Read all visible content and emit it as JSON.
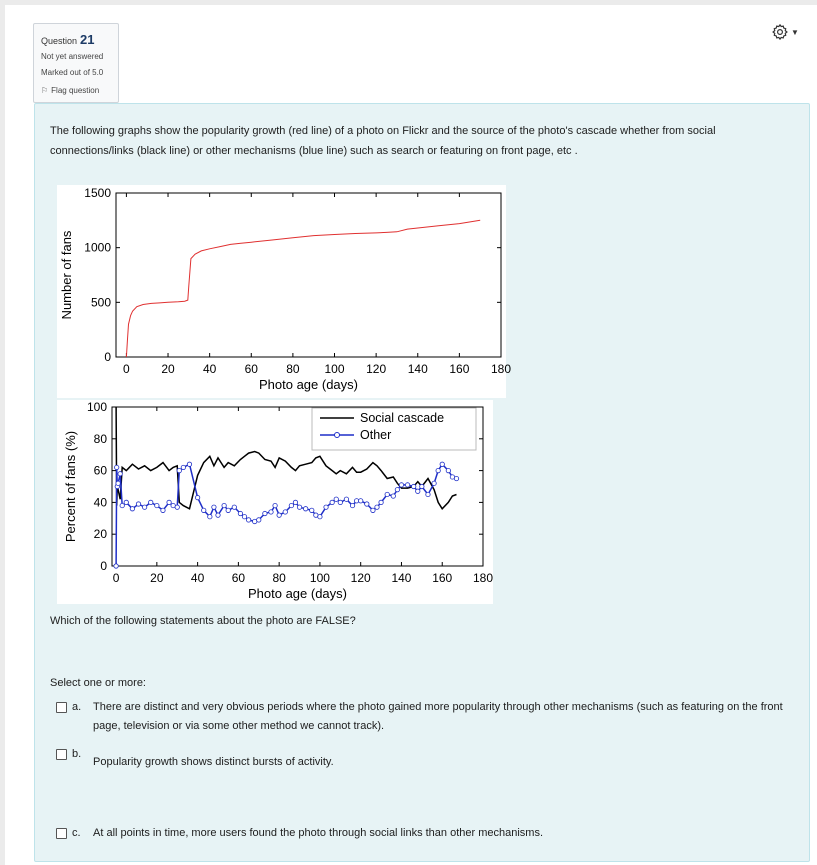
{
  "question_info": {
    "question_label": "Question",
    "question_number": "21",
    "status": "Not yet answered",
    "marks": "Marked out of 5.0",
    "flag_label": "Flag question"
  },
  "question_text": "The following graphs show the popularity growth (red line) of a photo on Flickr and the source of the photo's cascade whether from social connections/links (black line) or other mechanisms  (blue line) such as search or featuring on front page, etc .",
  "chart_data": [
    {
      "type": "line",
      "title": "",
      "xlabel": "Photo age (days)",
      "ylabel": "Number of fans",
      "xlim": [
        -5,
        180
      ],
      "ylim": [
        0,
        1500
      ],
      "xticks": [
        "0",
        "20",
        "40",
        "60",
        "80",
        "100",
        "120",
        "140",
        "160",
        "180"
      ],
      "yticks": [
        "0",
        "500",
        "1000",
        "1500"
      ],
      "series": [
        {
          "color": "#e03030",
          "x": [
            0,
            0.5,
            1,
            2,
            3,
            5,
            8,
            12,
            16,
            20,
            25,
            28,
            29.5,
            30,
            31,
            33,
            36,
            40,
            45,
            50,
            55,
            60,
            70,
            80,
            90,
            100,
            110,
            120,
            125,
            130,
            135,
            140,
            150,
            160,
            170
          ],
          "y": [
            0,
            150,
            300,
            380,
            420,
            460,
            480,
            490,
            495,
            500,
            505,
            510,
            520,
            650,
            900,
            940,
            970,
            990,
            1010,
            1030,
            1040,
            1050,
            1070,
            1090,
            1110,
            1120,
            1130,
            1135,
            1140,
            1145,
            1170,
            1180,
            1200,
            1220,
            1250
          ]
        }
      ]
    },
    {
      "type": "line",
      "title": "",
      "xlabel": "Photo age (days)",
      "ylabel": "Percent of fans (%)",
      "xlim": [
        -2,
        180
      ],
      "ylim": [
        0,
        100
      ],
      "xticks": [
        "0",
        "20",
        "40",
        "60",
        "80",
        "100",
        "120",
        "140",
        "160",
        "180"
      ],
      "yticks": [
        "0",
        "20",
        "40",
        "60",
        "80",
        "100"
      ],
      "legend": "top-right",
      "series": [
        {
          "name": "Social cascade",
          "color": "#000000",
          "x": [
            0,
            0.3,
            0.6,
            1,
            2,
            3,
            5,
            8,
            11,
            14,
            17,
            20,
            23,
            26,
            28,
            30,
            31,
            33,
            36,
            40,
            43,
            46,
            48,
            50,
            53,
            55,
            58,
            61,
            63,
            65,
            68,
            70,
            73,
            76,
            78,
            80,
            83,
            86,
            88,
            90,
            93,
            96,
            98,
            100,
            103,
            106,
            108,
            110,
            113,
            116,
            118,
            120,
            123,
            126,
            128,
            130,
            133,
            136,
            138,
            140,
            143,
            146,
            148,
            150,
            153,
            156,
            158,
            160,
            163,
            165,
            167
          ],
          "y": [
            100,
            38,
            50,
            48,
            42,
            62,
            60,
            64,
            61,
            63,
            60,
            62,
            65,
            60,
            62,
            63,
            40,
            38,
            36,
            57,
            65,
            69,
            63,
            68,
            62,
            65,
            63,
            67,
            69,
            71,
            72,
            71,
            67,
            66,
            62,
            68,
            66,
            62,
            60,
            63,
            64,
            65,
            68,
            69,
            63,
            60,
            58,
            60,
            58,
            62,
            59,
            59,
            61,
            65,
            63,
            60,
            55,
            56,
            52,
            49,
            49,
            50,
            53,
            50,
            55,
            48,
            40,
            36,
            40,
            44,
            45
          ]
        },
        {
          "name": "Other",
          "color": "#1f2fc8",
          "x": [
            0,
            0.3,
            0.6,
            1,
            2,
            3,
            5,
            8,
            11,
            14,
            17,
            20,
            23,
            26,
            28,
            30,
            31,
            33,
            36,
            40,
            43,
            46,
            48,
            50,
            53,
            55,
            58,
            61,
            63,
            65,
            68,
            70,
            73,
            76,
            78,
            80,
            83,
            86,
            88,
            90,
            93,
            96,
            98,
            100,
            103,
            106,
            108,
            110,
            113,
            116,
            118,
            120,
            123,
            126,
            128,
            130,
            133,
            136,
            138,
            140,
            143,
            146,
            148,
            150,
            153,
            156,
            158,
            160,
            163,
            165,
            167
          ],
          "y": [
            0,
            62,
            50,
            52,
            58,
            38,
            40,
            36,
            39,
            37,
            40,
            38,
            35,
            40,
            38,
            37,
            60,
            62,
            64,
            43,
            35,
            31,
            37,
            32,
            38,
            35,
            37,
            33,
            31,
            29,
            28,
            29,
            33,
            34,
            38,
            32,
            34,
            38,
            40,
            37,
            36,
            35,
            32,
            31,
            37,
            40,
            42,
            40,
            42,
            38,
            41,
            41,
            39,
            35,
            37,
            40,
            45,
            44,
            48,
            51,
            51,
            50,
            47,
            50,
            45,
            52,
            60,
            64,
            60,
            56,
            55
          ]
        }
      ]
    }
  ],
  "prompt": "Which of the following statements about the photo are FALSE?",
  "select_label": "Select one or more:",
  "options": [
    {
      "letter": "a.",
      "text": "There are distinct and very obvious periods where the photo gained more popularity through other mechanisms (such as featuring on the front page, television or via some other method we cannot track)."
    },
    {
      "letter": "b.",
      "text": "Popularity growth shows distinct bursts of activity."
    },
    {
      "letter": "c.",
      "text": "At all points in time, more users found the photo through social links than other mechanisms."
    }
  ]
}
